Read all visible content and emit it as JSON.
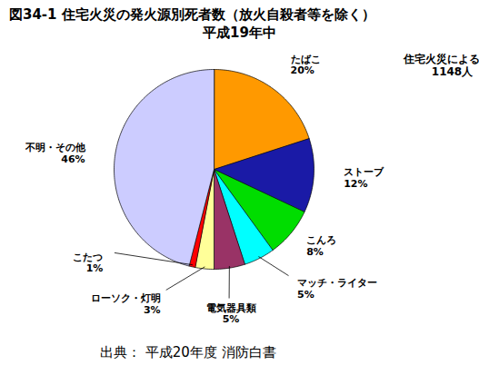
{
  "chart_data": {
    "type": "pie",
    "title": "図34-1 住宅火災の発火源別死者数（放火自殺者等を除く）",
    "subtitle": "平成19年中",
    "annotations": [
      "住宅火災による死者",
      "1148人"
    ],
    "caption": "出典： 平成20年度 消防白書",
    "categories": [
      "たばこ",
      "ストーブ",
      "こんろ",
      "マッチ・ライター",
      "電気器具類",
      "ローソク・灯明",
      "こたつ",
      "不明・その他"
    ],
    "values": [
      20,
      12,
      8,
      5,
      5,
      3,
      1,
      46
    ],
    "value_labels": [
      "20%",
      "12%",
      "8%",
      "5%",
      "5%",
      "3%",
      "1%",
      "46%"
    ],
    "colors": [
      "#ff9900",
      "#1a1aa6",
      "#00dd00",
      "#00ffff",
      "#993366",
      "#ffff99",
      "#ff0000",
      "#ccccff"
    ],
    "data_labels": true
  }
}
